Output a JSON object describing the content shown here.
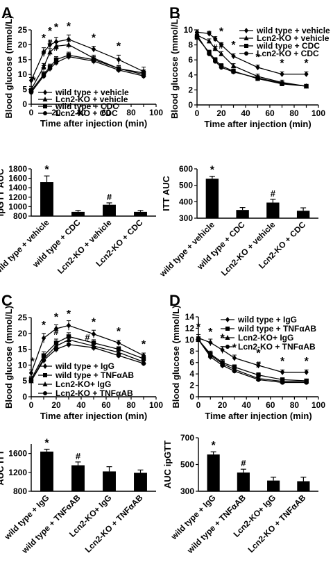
{
  "chart_data": [
    {
      "panel": "A",
      "type": "line",
      "xlabel": "Time after injection (min)",
      "ylabel": "Blood glucose (mmol/L)",
      "xlim": [
        0,
        100
      ],
      "ylim": [
        0,
        25
      ],
      "xticks": [
        0,
        10,
        20,
        30,
        40,
        50,
        60,
        70,
        80,
        90,
        100
      ],
      "yticks": [
        0,
        5,
        10,
        15,
        20,
        25
      ],
      "legend_position": "bottom-center",
      "x": [
        0,
        10,
        15,
        20,
        30,
        50,
        70,
        90
      ],
      "series": [
        {
          "name": "wild type + vehicle",
          "marker": "diamond",
          "values": [
            8.0,
            17.5,
            20.0,
            21.0,
            21.8,
            18.5,
            15.0,
            11.0
          ],
          "errors": [
            1.0,
            1.5,
            1.5,
            1.5,
            1.5,
            1.0,
            1.5,
            1.5
          ]
        },
        {
          "name": "Lcn2-KO + vehicle",
          "marker": "triangle",
          "values": [
            5.0,
            12.5,
            17.5,
            19.5,
            20.0,
            15.5,
            12.0,
            10.0
          ],
          "errors": [
            1.0,
            1.2,
            1.2,
            1.2,
            1.2,
            1.0,
            1.0,
            1.0
          ]
        },
        {
          "name": "wild type + CDC",
          "marker": "square",
          "values": [
            4.5,
            10.0,
            12.5,
            15.0,
            16.5,
            15.0,
            12.0,
            10.5
          ],
          "errors": [
            0.8,
            1.0,
            1.0,
            1.0,
            1.0,
            1.0,
            1.0,
            1.0
          ]
        },
        {
          "name": "Lcn2-KO + CDC",
          "marker": "circle",
          "values": [
            4.0,
            9.5,
            12.0,
            14.0,
            16.0,
            14.5,
            11.5,
            9.5
          ],
          "errors": [
            0.8,
            1.0,
            1.0,
            1.0,
            1.0,
            1.0,
            1.0,
            1.0
          ]
        }
      ],
      "annotations": [
        {
          "text": "*",
          "x": 2,
          "y": 6.8
        },
        {
          "text": "*",
          "x": 10,
          "y": 21.0
        },
        {
          "text": "#",
          "x": 10,
          "y": 16.3
        },
        {
          "text": "#",
          "x": 10,
          "y": 11.6
        },
        {
          "text": "*",
          "x": 15,
          "y": 23.4
        },
        {
          "text": "#",
          "x": 15,
          "y": 19.6
        },
        {
          "text": "*",
          "x": 20,
          "y": 24.6
        },
        {
          "text": "#",
          "x": 20,
          "y": 18.0
        },
        {
          "text": "*",
          "x": 30,
          "y": 25.0
        },
        {
          "text": "*",
          "x": 50,
          "y": 21.2
        },
        {
          "text": "*",
          "x": 70,
          "y": 18.3
        }
      ]
    },
    {
      "panel": "A",
      "type": "bar",
      "ylabel": "ipGTT AUC",
      "ylim": [
        800,
        1800
      ],
      "yticks": [
        800,
        1000,
        1200,
        1400,
        1600,
        1800
      ],
      "categories": [
        "wild type + vehicle",
        "wild type + CDC",
        "Lcn2-KO + vehicle",
        "Lcn2-KO + CDC"
      ],
      "values": [
        1520,
        890,
        1040,
        890
      ],
      "errors": [
        130,
        30,
        40,
        30
      ],
      "annotations": [
        "*",
        "",
        "#",
        ""
      ]
    },
    {
      "panel": "B",
      "type": "line",
      "xlabel": "Time after injection (min)",
      "ylabel": "Blood glucose (mmol/L)",
      "xlim": [
        0,
        100
      ],
      "ylim": [
        0,
        10
      ],
      "xticks": [
        0,
        10,
        20,
        30,
        40,
        50,
        60,
        70,
        80,
        90,
        100
      ],
      "yticks": [
        0,
        2,
        4,
        6,
        8,
        10
      ],
      "legend_position": "top-right",
      "x": [
        0,
        10,
        15,
        20,
        30,
        50,
        70,
        90
      ],
      "series": [
        {
          "name": "wild type + vehicle",
          "marker": "diamond",
          "values": [
            9.7,
            9.5,
            8.8,
            8.0,
            6.5,
            5.0,
            4.1,
            4.1
          ],
          "errors": [
            0.3,
            0.3,
            0.3,
            0.3,
            0.3,
            0.3,
            0.3,
            0.3
          ]
        },
        {
          "name": "Lcn2-KO + vehicle",
          "marker": "triangle",
          "values": [
            9.3,
            8.5,
            7.5,
            6.8,
            5.2,
            3.8,
            3.0,
            2.5
          ],
          "errors": [
            0.3,
            0.3,
            0.3,
            0.3,
            0.3,
            0.3,
            0.3,
            0.2
          ]
        },
        {
          "name": "wild type + CDC",
          "marker": "square",
          "values": [
            9.0,
            7.0,
            6.0,
            5.2,
            4.5,
            3.5,
            2.8,
            2.5
          ],
          "errors": [
            0.3,
            0.3,
            0.3,
            0.3,
            0.3,
            0.3,
            0.2,
            0.2
          ]
        },
        {
          "name": "Lcn2-KO + CDC",
          "marker": "circle",
          "values": [
            9.3,
            6.8,
            5.8,
            5.0,
            4.4,
            3.6,
            2.9,
            2.5
          ],
          "errors": [
            0.3,
            0.3,
            0.3,
            0.3,
            0.3,
            0.3,
            0.2,
            0.2
          ]
        }
      ],
      "annotations": [
        {
          "text": "*",
          "x": 10,
          "y": 8.9
        },
        {
          "text": "*",
          "x": 15,
          "y": 8.0
        },
        {
          "text": "#",
          "x": 15,
          "y": 7.2
        },
        {
          "text": "*",
          "x": 20,
          "y": 9.3
        },
        {
          "text": "#",
          "x": 20,
          "y": 7.5
        },
        {
          "text": "*",
          "x": 30,
          "y": 7.5
        },
        {
          "text": "*",
          "x": 50,
          "y": 5.9
        },
        {
          "text": "*",
          "x": 70,
          "y": 5.1
        },
        {
          "text": "*",
          "x": 90,
          "y": 5.1
        }
      ]
    },
    {
      "panel": "B",
      "type": "bar",
      "ylabel": "ITT AUC",
      "ylim": [
        300,
        600
      ],
      "yticks": [
        300,
        400,
        500,
        600
      ],
      "categories": [
        "wild type + vehicle",
        "wild type + CDC",
        "Lcn2-KO + vehicle",
        "Lcn2-KO + CDC"
      ],
      "values": [
        540,
        350,
        395,
        345
      ],
      "errors": [
        15,
        15,
        20,
        18
      ],
      "annotations": [
        "*",
        "",
        "#",
        ""
      ]
    },
    {
      "panel": "C",
      "type": "line",
      "xlabel": "Time after injection (min)",
      "ylabel": "Blood glucose (mmol/L)",
      "xlim": [
        0,
        100
      ],
      "ylim": [
        0,
        25
      ],
      "xticks": [
        0,
        10,
        20,
        30,
        40,
        50,
        60,
        70,
        80,
        90,
        100
      ],
      "yticks": [
        0,
        5,
        10,
        15,
        20,
        25
      ],
      "legend_position": "bottom-center",
      "x": [
        0,
        10,
        20,
        30,
        50,
        70,
        90
      ],
      "series": [
        {
          "name": "wild type + IgG",
          "marker": "diamond",
          "values": [
            7.5,
            18.5,
            21.5,
            22.5,
            19.8,
            17.0,
            13.0
          ],
          "errors": [
            1.0,
            1.5,
            1.2,
            1.5,
            1.2,
            0.8,
            0.8
          ]
        },
        {
          "name": "wild type + TNFαAB",
          "marker": "square",
          "values": [
            5.5,
            13.0,
            17.0,
            19.0,
            17.0,
            15.0,
            12.0
          ],
          "errors": [
            1.0,
            1.2,
            1.2,
            1.2,
            1.0,
            0.8,
            0.8
          ]
        },
        {
          "name": "Lcn2-KO+ IgG",
          "marker": "triangle",
          "values": [
            5.0,
            12.0,
            16.0,
            18.0,
            16.0,
            14.0,
            11.0
          ],
          "errors": [
            0.8,
            1.0,
            1.0,
            1.0,
            1.0,
            0.8,
            0.8
          ]
        },
        {
          "name": "Lcn2-KO + TNFαAB",
          "marker": "circle",
          "values": [
            5.0,
            11.5,
            15.0,
            16.5,
            15.5,
            13.0,
            10.5
          ],
          "errors": [
            0.8,
            1.0,
            1.0,
            1.0,
            1.0,
            0.8,
            0.8
          ]
        }
      ],
      "annotations": [
        {
          "text": "*",
          "x": 1,
          "y": 10.0
        },
        {
          "text": "*",
          "x": 10,
          "y": 21.5
        },
        {
          "text": "*",
          "x": 20,
          "y": 24.0
        },
        {
          "text": "#",
          "x": 20,
          "y": 19.5
        },
        {
          "text": "*",
          "x": 30,
          "y": 25.0
        },
        {
          "text": "*",
          "x": 50,
          "y": 22.5
        },
        {
          "text": "#",
          "x": 45,
          "y": 17.8
        },
        {
          "text": "*",
          "x": 70,
          "y": 19.5
        },
        {
          "text": "*",
          "x": 90,
          "y": 15.5
        }
      ]
    },
    {
      "panel": "C",
      "type": "bar",
      "ylabel": "AUC ITT",
      "ylim": [
        800,
        1800
      ],
      "yticks": [
        800,
        1200,
        1600
      ],
      "categories": [
        "wild type + IgG",
        "wild type + TNFαAB",
        "Lcn2-KO+ IgG",
        "Lcn2-KO + TNFαAB"
      ],
      "values": [
        1640,
        1350,
        1220,
        1190
      ],
      "errors": [
        50,
        70,
        100,
        60
      ],
      "annotations": [
        "*",
        "#",
        "",
        ""
      ]
    },
    {
      "panel": "D",
      "type": "line",
      "xlabel": "Time after injection (min)",
      "ylabel": "Blood glucose (mmol/L)",
      "xlim": [
        0,
        100
      ],
      "ylim": [
        0,
        14
      ],
      "xticks": [
        0,
        10,
        20,
        30,
        40,
        50,
        60,
        70,
        80,
        90,
        100
      ],
      "yticks": [
        0,
        2,
        4,
        6,
        8,
        10,
        12,
        14
      ],
      "legend_position": "top-right",
      "x": [
        0,
        10,
        20,
        30,
        50,
        70,
        90
      ],
      "series": [
        {
          "name": "wild type + IgG",
          "marker": "diamond",
          "values": [
            10.3,
            9.5,
            8.2,
            6.8,
            5.5,
            4.3,
            4.3
          ],
          "errors": [
            0.6,
            0.6,
            0.6,
            0.5,
            0.5,
            0.4,
            0.4
          ]
        },
        {
          "name": "wild type + TNFαAB",
          "marker": "square",
          "values": [
            10.0,
            7.5,
            6.0,
            5.2,
            3.8,
            3.0,
            2.8
          ],
          "errors": [
            0.5,
            0.5,
            0.5,
            0.4,
            0.4,
            0.3,
            0.3
          ]
        },
        {
          "name": "Lcn2-KO+ IgG",
          "marker": "triangle",
          "values": [
            10.0,
            7.3,
            5.8,
            4.8,
            3.2,
            2.7,
            2.7
          ],
          "errors": [
            0.5,
            0.5,
            0.5,
            0.4,
            0.4,
            0.3,
            0.3
          ]
        },
        {
          "name": "Lcn2-KO + TNFαAB",
          "marker": "circle",
          "values": [
            10.0,
            7.0,
            5.5,
            4.5,
            3.0,
            2.5,
            2.5
          ],
          "errors": [
            0.5,
            0.5,
            0.5,
            0.4,
            0.4,
            0.3,
            0.3
          ]
        }
      ],
      "annotations": [
        {
          "text": "*",
          "x": 0,
          "y": 11.6
        },
        {
          "text": "*",
          "x": 10,
          "y": 10.7
        },
        {
          "text": "*",
          "x": 20,
          "y": 9.7
        },
        {
          "text": "*",
          "x": 30,
          "y": 8.0
        },
        {
          "text": "*",
          "x": 50,
          "y": 7.0
        },
        {
          "text": "#",
          "x": 50,
          "y": 5.1
        },
        {
          "text": "*",
          "x": 70,
          "y": 5.6
        },
        {
          "text": "*",
          "x": 90,
          "y": 5.6
        }
      ]
    },
    {
      "panel": "D",
      "type": "bar",
      "ylabel": "AUC ipGTT",
      "ylim": [
        300,
        700
      ],
      "yticks": [
        300,
        500,
        700
      ],
      "categories": [
        "wild type + IgG",
        "wild type + TNFαAB",
        "Lcn2-KO+ IgG",
        "Lcn2-KO + TNFαAB"
      ],
      "values": [
        575,
        440,
        380,
        375
      ],
      "errors": [
        20,
        25,
        25,
        30
      ],
      "annotations": [
        "*",
        "#",
        "",
        ""
      ]
    }
  ]
}
